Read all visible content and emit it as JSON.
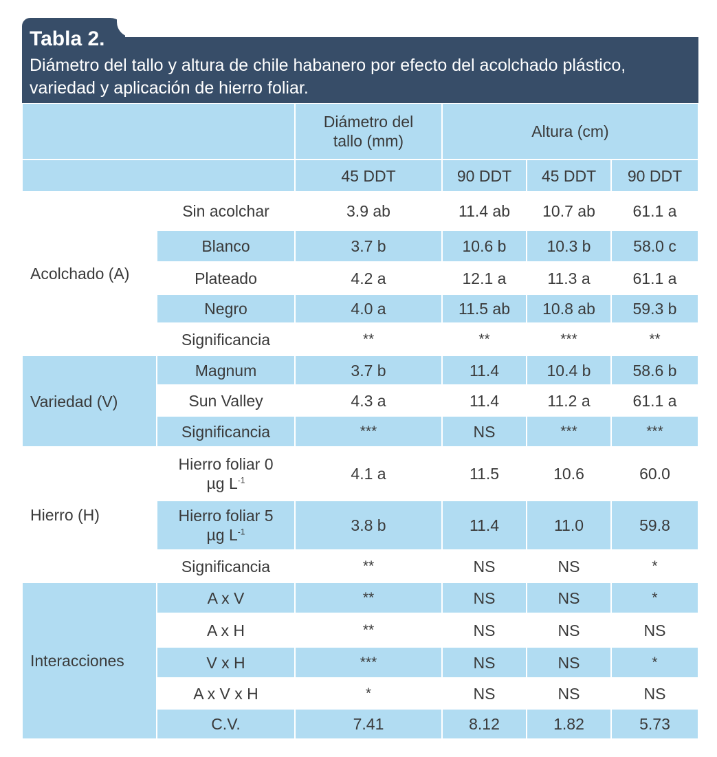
{
  "title": "Tabla 2.",
  "subtitle": "Diámetro del tallo y altura de chile habanero por efecto del acolchado plástico, variedad y aplicación de hierro foliar.",
  "headers": {
    "diametro": "Diámetro del tallo (mm)",
    "altura": "Altura (cm)",
    "sub": [
      "45 DDT",
      "90 DDT",
      "45 DDT",
      "90 DDT"
    ]
  },
  "groups": [
    {
      "label": "Acolchado (A)"
    },
    {
      "label": "Variedad (V)"
    },
    {
      "label": "Hierro (H)"
    },
    {
      "label": "Interacciones"
    }
  ],
  "rows": [
    {
      "label": "Sin acolchar",
      "values": [
        "3.9 ab",
        "11.4 ab",
        "10.7 ab",
        "61.1 a"
      ]
    },
    {
      "label": "Blanco",
      "values": [
        "3.7 b",
        "10.6 b",
        "10.3 b",
        "58.0 c"
      ]
    },
    {
      "label": "Plateado",
      "values": [
        "4.2 a",
        "12.1 a",
        "11.3 a",
        "61.1 a"
      ]
    },
    {
      "label": "Negro",
      "values": [
        "4.0 a",
        "11.5 ab",
        "10.8 ab",
        "59.3 b"
      ]
    },
    {
      "label": "Significancia",
      "values": [
        "**",
        "**",
        "***",
        "**"
      ]
    },
    {
      "label": "Magnum",
      "values": [
        "3.7 b",
        "11.4",
        "10.4 b",
        "58.6 b"
      ]
    },
    {
      "label": "Sun Valley",
      "values": [
        "4.3 a",
        "11.4",
        "11.2 a",
        "61.1 a"
      ]
    },
    {
      "label": "Significancia",
      "values": [
        "***",
        "NS",
        "***",
        "***"
      ]
    },
    {
      "label": "Hierro foliar 0",
      "label2": "µg L",
      "sup": "-1",
      "values": [
        "4.1 a",
        "11.5",
        "10.6",
        "60.0"
      ]
    },
    {
      "label": "Hierro foliar 5",
      "label2": "µg L",
      "sup": "-1",
      "values": [
        "3.8 b",
        "11.4",
        "11.0",
        "59.8"
      ]
    },
    {
      "label": "Significancia",
      "values": [
        "**",
        "NS",
        "NS",
        "*"
      ]
    },
    {
      "label": "A x V",
      "values": [
        "**",
        "NS",
        "NS",
        "*"
      ]
    },
    {
      "label": "A x H",
      "values": [
        "**",
        "NS",
        "NS",
        "NS"
      ]
    },
    {
      "label": "V x H",
      "values": [
        "***",
        "NS",
        "NS",
        "*"
      ]
    },
    {
      "label": "A x V x H",
      "values": [
        "*",
        "NS",
        "NS",
        "NS"
      ]
    },
    {
      "label": "C.V.",
      "values": [
        "7.41",
        "8.12",
        "1.82",
        "5.73"
      ]
    }
  ],
  "colors": {
    "header": "#374d68",
    "band": "#b1dcf2"
  }
}
